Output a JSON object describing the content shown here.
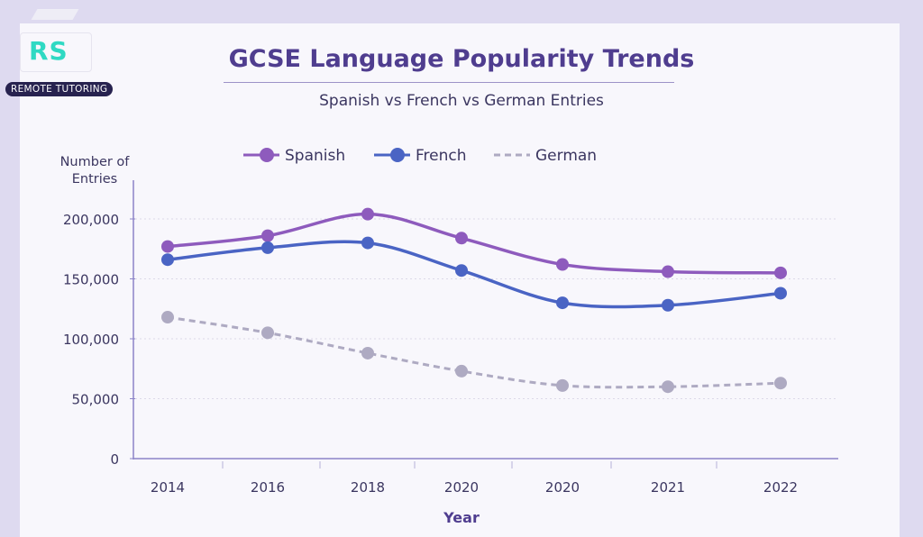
{
  "branding": {
    "logo_text": "RS",
    "badge": "REMOTE TUTORING"
  },
  "header": {
    "title": "GCSE Language Popularity Trends",
    "subtitle": "Spanish vs French vs German Entries"
  },
  "chart_data": {
    "type": "line",
    "title": "GCSE Language Popularity Trends",
    "subtitle": "Spanish vs French vs German Entries",
    "xlabel": "Year",
    "ylabel": "Number of Entries",
    "categories": [
      "2014",
      "2016",
      "2018",
      "2020",
      "2020",
      "2021",
      "2022"
    ],
    "yticks": [
      {
        "v": 0,
        "label": "0"
      },
      {
        "v": 50000,
        "label": "50,000"
      },
      {
        "v": 100000,
        "label": "100,000"
      },
      {
        "v": 150000,
        "label": "150,000"
      },
      {
        "v": 200000,
        "label": "200,000"
      }
    ],
    "ylim": [
      0,
      215000
    ],
    "grid": true,
    "legend_position": "top",
    "series": [
      {
        "name": "Spanish",
        "color": "#8e5bbd",
        "dashed": false,
        "values": [
          177000,
          186000,
          204000,
          184000,
          162000,
          156000,
          155000
        ]
      },
      {
        "name": "French",
        "color": "#4a64c4",
        "dashed": false,
        "values": [
          166000,
          176000,
          180000,
          157000,
          130000,
          128000,
          138000
        ]
      },
      {
        "name": "German",
        "color": "#aeaac2",
        "dashed": true,
        "values": [
          118000,
          105000,
          88000,
          73000,
          61000,
          60000,
          63000
        ]
      }
    ]
  }
}
